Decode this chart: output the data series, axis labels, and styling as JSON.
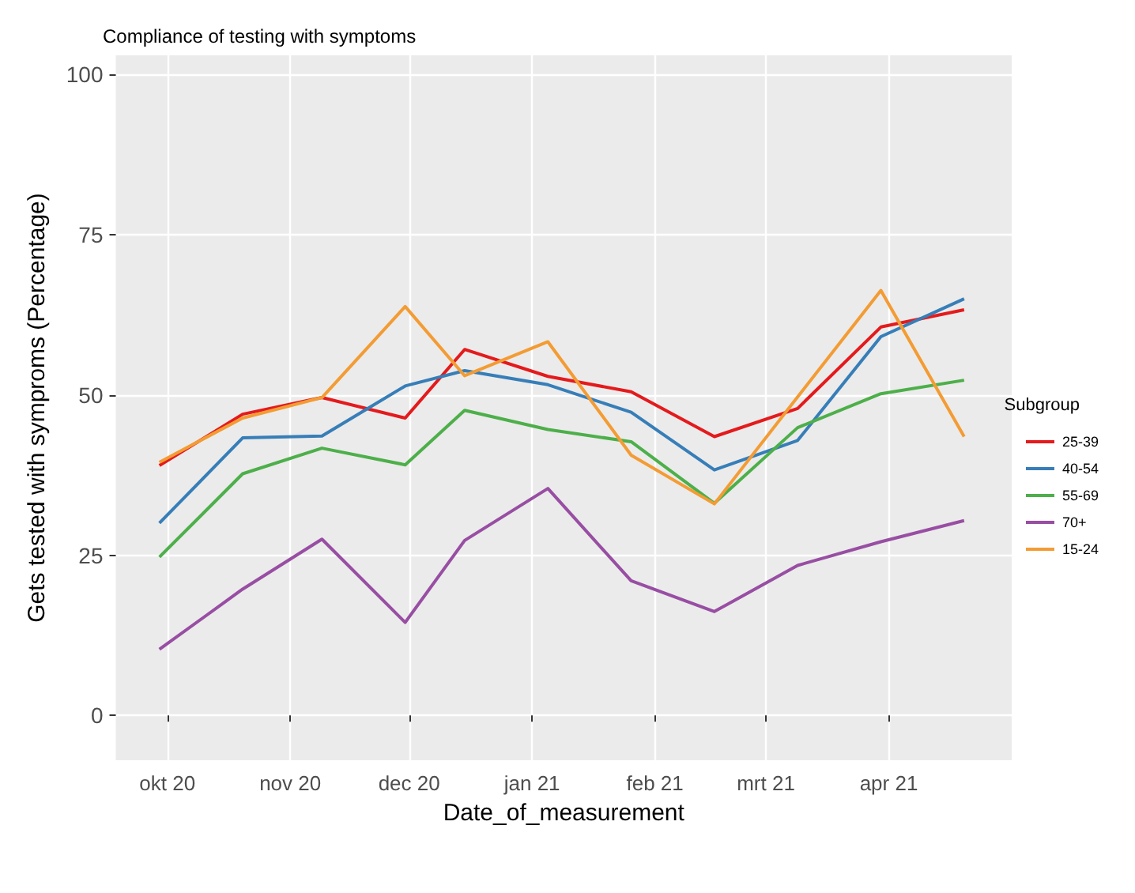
{
  "chart_data": {
    "type": "line",
    "title": "Compliance of testing with symptoms",
    "xlabel": "Date_of_measurement",
    "ylabel": "Gets tested with symproms (Percentage)",
    "legend_title": "Subgroup",
    "x": [
      "2020-09-29",
      "2020-10-20",
      "2020-11-09",
      "2020-11-30",
      "2020-12-15",
      "2021-01-05",
      "2021-01-26",
      "2021-02-16",
      "2021-03-09",
      "2021-03-30",
      "2021-04-20"
    ],
    "series": [
      {
        "name": "25-39",
        "color": "#e41a1c",
        "values": [
          39.0,
          47.0,
          49.6,
          46.4,
          57.1,
          52.9,
          50.5,
          43.5,
          47.9,
          60.6,
          63.3
        ]
      },
      {
        "name": "40-54",
        "color": "#377eb8",
        "values": [
          30.0,
          43.3,
          43.6,
          51.4,
          53.8,
          51.6,
          47.3,
          38.3,
          42.9,
          59.1,
          65.0
        ]
      },
      {
        "name": "55-69",
        "color": "#4daf4a",
        "values": [
          24.7,
          37.7,
          41.7,
          39.1,
          47.6,
          44.6,
          42.7,
          33.1,
          44.9,
          50.2,
          52.3
        ]
      },
      {
        "name": "70+",
        "color": "#984ea3",
        "values": [
          10.3,
          19.7,
          27.5,
          14.5,
          27.3,
          35.4,
          21.0,
          16.2,
          23.4,
          27.1,
          30.4
        ]
      },
      {
        "name": "15-24",
        "color": "#f39c34",
        "values": [
          39.5,
          46.4,
          49.6,
          63.8,
          53.0,
          58.3,
          40.6,
          33.0,
          49.7,
          66.3,
          43.5
        ]
      }
    ],
    "xlim": [
      "2020-09-18",
      "2021-05-02"
    ],
    "xticks": [
      {
        "value": "2020-10-01",
        "label": "okt 20"
      },
      {
        "value": "2020-11-01",
        "label": "nov 20"
      },
      {
        "value": "2020-12-01",
        "label": "dec 20"
      },
      {
        "value": "2021-01-01",
        "label": "jan 21"
      },
      {
        "value": "2021-02-01",
        "label": "feb 21"
      },
      {
        "value": "2021-03-01",
        "label": "mrt 21"
      },
      {
        "value": "2021-04-01",
        "label": "apr 21"
      }
    ],
    "ylim": [
      -7,
      103
    ],
    "yticks": [
      0,
      25,
      50,
      75,
      100
    ],
    "grid": true,
    "legend": "right",
    "marker": "none",
    "line_style": "solid"
  }
}
